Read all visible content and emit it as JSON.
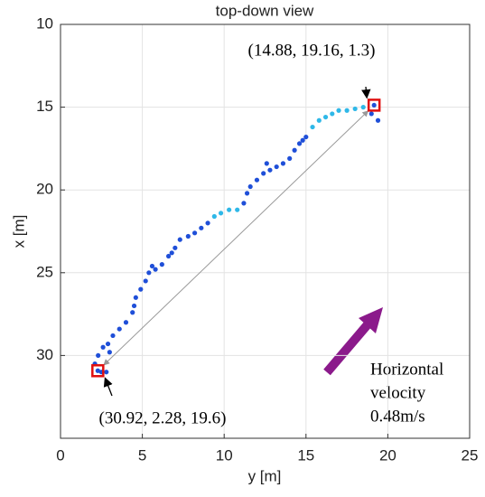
{
  "chart_data": {
    "type": "scatter",
    "title": "top-down view",
    "x_label": "y [m]",
    "y_label": "x [m]",
    "xlim": [
      0,
      25
    ],
    "xticks": [
      0,
      5,
      10,
      15,
      20,
      25
    ],
    "ylim": [
      10,
      35
    ],
    "yticks": [
      10,
      15,
      20,
      25,
      30
    ],
    "y_reversed": true,
    "grid": true,
    "series": [
      {
        "color": "#1f4fd8",
        "x": [
          2.8,
          2.1,
          2.3,
          2.6,
          2.9,
          3.2,
          3.6,
          4.0,
          4.4,
          4.5,
          4.6,
          4.9,
          5.2,
          5.4,
          5.8,
          6.2,
          6.6,
          7.0,
          7.3,
          7.8,
          8.2,
          8.6,
          9.0,
          11.2,
          11.4,
          11.6,
          12.0,
          12.4,
          12.8,
          13.2,
          13.6,
          14.0,
          14.3,
          14.6,
          15.0,
          19.0,
          19.4,
          2.5,
          3.0,
          5.6,
          6.8,
          12.6,
          14.8
        ],
        "values": [
          31.0,
          30.5,
          30.0,
          29.5,
          29.3,
          28.8,
          28.4,
          28.0,
          27.4,
          27.0,
          26.5,
          26.0,
          25.5,
          25.0,
          24.8,
          24.5,
          24.0,
          23.5,
          23.0,
          22.8,
          22.6,
          22.3,
          22.0,
          20.8,
          20.2,
          19.8,
          19.4,
          19.0,
          18.8,
          18.6,
          18.4,
          18.1,
          17.6,
          17.2,
          16.8,
          15.4,
          15.8,
          31.0,
          29.8,
          24.6,
          23.8,
          18.4,
          17.0
        ]
      },
      {
        "color": "#2fb8e8",
        "x": [
          9.4,
          9.8,
          10.3,
          10.8,
          15.4,
          15.8,
          16.2,
          16.6,
          17.0,
          17.5,
          18.0,
          18.5
        ],
        "values": [
          21.6,
          21.4,
          21.2,
          21.2,
          16.2,
          15.8,
          15.6,
          15.4,
          15.2,
          15.2,
          15.1,
          15.0
        ]
      }
    ],
    "highlights": [
      {
        "x": 19.16,
        "y": 14.88,
        "label": "(14.88, 19.16, 1.3)"
      },
      {
        "x": 2.28,
        "y": 30.92,
        "label": "(30.92, 2.28, 19.6)"
      }
    ],
    "velocity_label": [
      "Horizontal",
      "velocity",
      "0.48m/s"
    ]
  }
}
